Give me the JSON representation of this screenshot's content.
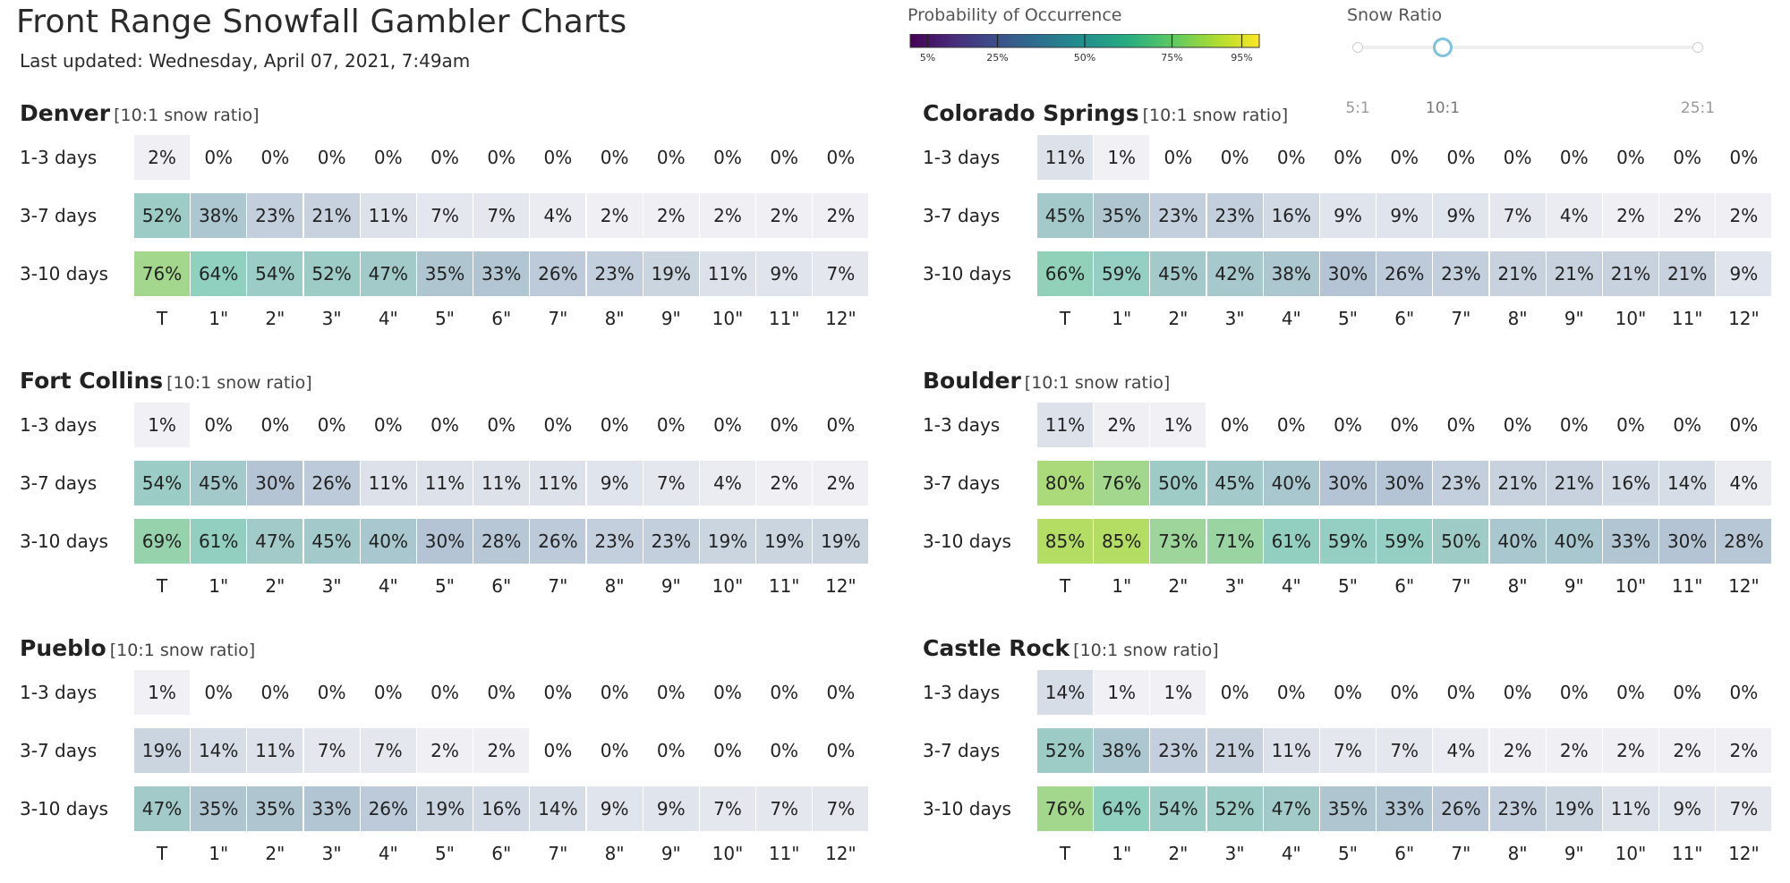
{
  "header": {
    "title": "Front Range Snowfall Gambler Charts",
    "updated": "Last updated: Wednesday, April 07, 2021, 7:49am"
  },
  "legend": {
    "title": "Probability of Occurrence",
    "ticks": [
      "5%",
      "25%",
      "50%",
      "75%",
      "95%"
    ],
    "colormap": "viridis"
  },
  "snow_ratio": {
    "title": "Snow Ratio",
    "options": [
      "5:1",
      "10:1",
      "25:1"
    ],
    "selected": "10:1"
  },
  "colors": {
    "low": "#f3f2f6",
    "mid": "#b4c4d4",
    "teal": "#8fd0be",
    "high": "#bde04e"
  },
  "chart_data": [
    {
      "type": "heatmap",
      "title": "Denver",
      "subtitle": "[10:1 snow ratio]",
      "rows": [
        "1-3 days",
        "3-7 days",
        "3-10 days"
      ],
      "columns": [
        "T",
        "1\"",
        "2\"",
        "3\"",
        "4\"",
        "5\"",
        "6\"",
        "7\"",
        "8\"",
        "9\"",
        "10\"",
        "11\"",
        "12\""
      ],
      "values": [
        [
          2,
          0,
          0,
          0,
          0,
          0,
          0,
          0,
          0,
          0,
          0,
          0,
          0
        ],
        [
          52,
          38,
          23,
          21,
          11,
          7,
          7,
          4,
          2,
          2,
          2,
          2,
          2
        ],
        [
          76,
          64,
          54,
          52,
          47,
          35,
          33,
          26,
          23,
          19,
          11,
          9,
          7
        ]
      ]
    },
    {
      "type": "heatmap",
      "title": "Colorado Springs",
      "subtitle": "[10:1 snow ratio]",
      "rows": [
        "1-3 days",
        "3-7 days",
        "3-10 days"
      ],
      "columns": [
        "T",
        "1\"",
        "2\"",
        "3\"",
        "4\"",
        "5\"",
        "6\"",
        "7\"",
        "8\"",
        "9\"",
        "10\"",
        "11\"",
        "12\""
      ],
      "values": [
        [
          11,
          1,
          0,
          0,
          0,
          0,
          0,
          0,
          0,
          0,
          0,
          0,
          0
        ],
        [
          45,
          35,
          23,
          23,
          16,
          9,
          9,
          9,
          7,
          4,
          2,
          2,
          2
        ],
        [
          66,
          59,
          45,
          42,
          38,
          30,
          26,
          23,
          21,
          21,
          21,
          21,
          9
        ]
      ]
    },
    {
      "type": "heatmap",
      "title": "Fort Collins",
      "subtitle": "[10:1 snow ratio]",
      "rows": [
        "1-3 days",
        "3-7 days",
        "3-10 days"
      ],
      "columns": [
        "T",
        "1\"",
        "2\"",
        "3\"",
        "4\"",
        "5\"",
        "6\"",
        "7\"",
        "8\"",
        "9\"",
        "10\"",
        "11\"",
        "12\""
      ],
      "values": [
        [
          1,
          0,
          0,
          0,
          0,
          0,
          0,
          0,
          0,
          0,
          0,
          0,
          0
        ],
        [
          54,
          45,
          30,
          26,
          11,
          11,
          11,
          11,
          9,
          7,
          4,
          2,
          2
        ],
        [
          69,
          61,
          47,
          45,
          40,
          30,
          28,
          26,
          23,
          23,
          19,
          19,
          19
        ]
      ]
    },
    {
      "type": "heatmap",
      "title": "Boulder",
      "subtitle": "[10:1 snow ratio]",
      "rows": [
        "1-3 days",
        "3-7 days",
        "3-10 days"
      ],
      "columns": [
        "T",
        "1\"",
        "2\"",
        "3\"",
        "4\"",
        "5\"",
        "6\"",
        "7\"",
        "8\"",
        "9\"",
        "10\"",
        "11\"",
        "12\""
      ],
      "values": [
        [
          11,
          2,
          1,
          0,
          0,
          0,
          0,
          0,
          0,
          0,
          0,
          0,
          0
        ],
        [
          80,
          76,
          50,
          45,
          40,
          30,
          30,
          23,
          21,
          21,
          16,
          14,
          4
        ],
        [
          85,
          85,
          73,
          71,
          61,
          59,
          59,
          50,
          40,
          40,
          33,
          30,
          28
        ]
      ]
    },
    {
      "type": "heatmap",
      "title": "Pueblo",
      "subtitle": "[10:1 snow ratio]",
      "rows": [
        "1-3 days",
        "3-7 days",
        "3-10 days"
      ],
      "columns": [
        "T",
        "1\"",
        "2\"",
        "3\"",
        "4\"",
        "5\"",
        "6\"",
        "7\"",
        "8\"",
        "9\"",
        "10\"",
        "11\"",
        "12\""
      ],
      "values": [
        [
          1,
          0,
          0,
          0,
          0,
          0,
          0,
          0,
          0,
          0,
          0,
          0,
          0
        ],
        [
          19,
          14,
          11,
          7,
          7,
          2,
          2,
          0,
          0,
          0,
          0,
          0,
          0
        ],
        [
          47,
          35,
          35,
          33,
          26,
          19,
          16,
          14,
          9,
          9,
          7,
          7,
          7
        ]
      ]
    },
    {
      "type": "heatmap",
      "title": "Castle Rock",
      "subtitle": "[10:1 snow ratio]",
      "rows": [
        "1-3 days",
        "3-7 days",
        "3-10 days"
      ],
      "columns": [
        "T",
        "1\"",
        "2\"",
        "3\"",
        "4\"",
        "5\"",
        "6\"",
        "7\"",
        "8\"",
        "9\"",
        "10\"",
        "11\"",
        "12\""
      ],
      "values": [
        [
          14,
          1,
          1,
          0,
          0,
          0,
          0,
          0,
          0,
          0,
          0,
          0,
          0
        ],
        [
          52,
          38,
          23,
          21,
          11,
          7,
          7,
          4,
          2,
          2,
          2,
          2,
          2
        ],
        [
          76,
          64,
          54,
          52,
          47,
          35,
          33,
          26,
          23,
          19,
          11,
          9,
          7
        ]
      ]
    }
  ]
}
